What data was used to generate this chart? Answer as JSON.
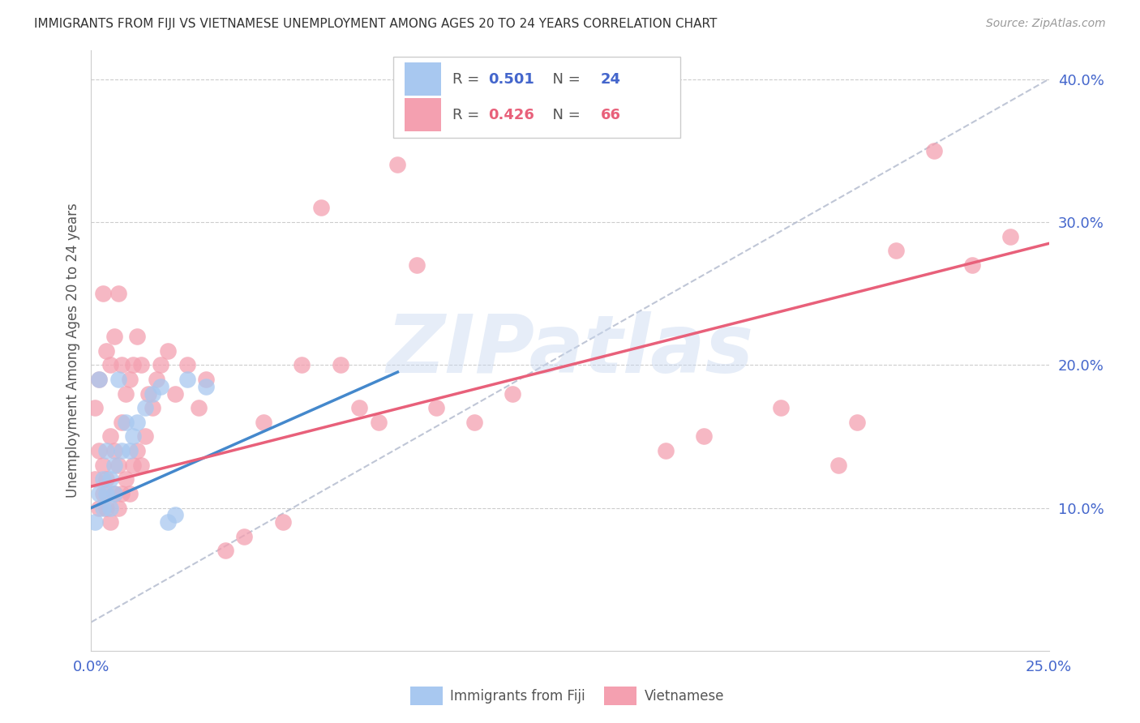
{
  "title": "IMMIGRANTS FROM FIJI VS VIETNAMESE UNEMPLOYMENT AMONG AGES 20 TO 24 YEARS CORRELATION CHART",
  "source": "Source: ZipAtlas.com",
  "ylabel": "Unemployment Among Ages 20 to 24 years",
  "xlabel_fiji": "Immigrants from Fiji",
  "xlabel_vietnamese": "Vietnamese",
  "xlim": [
    0.0,
    0.25
  ],
  "ylim": [
    0.0,
    0.42
  ],
  "fiji_color": "#a8c8f0",
  "vietnamese_color": "#f4a0b0",
  "fiji_R": 0.501,
  "fiji_N": 24,
  "vietnamese_R": 0.426,
  "vietnamese_N": 66,
  "fiji_line_color": "#4488cc",
  "vietnamese_line_color": "#e8607a",
  "dashed_line_color": "#b0b8cc",
  "watermark": "ZIPatlas",
  "fiji_points_x": [
    0.001,
    0.002,
    0.002,
    0.003,
    0.003,
    0.004,
    0.004,
    0.005,
    0.005,
    0.006,
    0.006,
    0.007,
    0.008,
    0.009,
    0.01,
    0.011,
    0.012,
    0.014,
    0.016,
    0.018,
    0.02,
    0.022,
    0.025,
    0.03
  ],
  "fiji_points_y": [
    0.09,
    0.11,
    0.19,
    0.1,
    0.12,
    0.11,
    0.14,
    0.1,
    0.12,
    0.11,
    0.13,
    0.19,
    0.14,
    0.16,
    0.14,
    0.15,
    0.16,
    0.17,
    0.18,
    0.185,
    0.09,
    0.095,
    0.19,
    0.185
  ],
  "vietnamese_points_x": [
    0.001,
    0.001,
    0.002,
    0.002,
    0.002,
    0.003,
    0.003,
    0.003,
    0.004,
    0.004,
    0.004,
    0.005,
    0.005,
    0.005,
    0.006,
    0.006,
    0.006,
    0.007,
    0.007,
    0.007,
    0.008,
    0.008,
    0.008,
    0.009,
    0.009,
    0.01,
    0.01,
    0.011,
    0.011,
    0.012,
    0.012,
    0.013,
    0.013,
    0.014,
    0.015,
    0.016,
    0.017,
    0.018,
    0.02,
    0.022,
    0.025,
    0.028,
    0.03,
    0.035,
    0.04,
    0.045,
    0.05,
    0.055,
    0.06,
    0.065,
    0.07,
    0.075,
    0.08,
    0.085,
    0.09,
    0.1,
    0.11,
    0.15,
    0.16,
    0.18,
    0.195,
    0.2,
    0.21,
    0.22,
    0.23,
    0.24
  ],
  "vietnamese_points_y": [
    0.12,
    0.17,
    0.1,
    0.14,
    0.19,
    0.11,
    0.13,
    0.25,
    0.1,
    0.12,
    0.21,
    0.09,
    0.15,
    0.2,
    0.11,
    0.14,
    0.22,
    0.1,
    0.13,
    0.25,
    0.11,
    0.16,
    0.2,
    0.12,
    0.18,
    0.11,
    0.19,
    0.13,
    0.2,
    0.14,
    0.22,
    0.13,
    0.2,
    0.15,
    0.18,
    0.17,
    0.19,
    0.2,
    0.21,
    0.18,
    0.2,
    0.17,
    0.19,
    0.07,
    0.08,
    0.16,
    0.09,
    0.2,
    0.31,
    0.2,
    0.17,
    0.16,
    0.34,
    0.27,
    0.17,
    0.16,
    0.18,
    0.14,
    0.15,
    0.17,
    0.13,
    0.16,
    0.28,
    0.35,
    0.27,
    0.29
  ]
}
